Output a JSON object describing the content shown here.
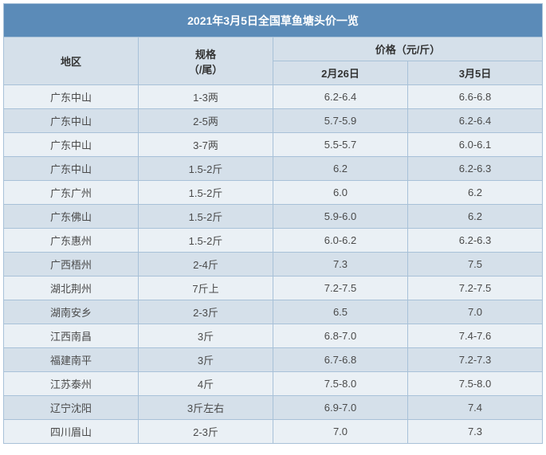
{
  "title": "2021年3月5日全国草鱼塘头价一览",
  "header": {
    "region": "地区",
    "spec": "规格",
    "spec_unit": "（/尾）",
    "price_header": "价格（元/斤）",
    "date1": "2月26日",
    "date2": "3月5日"
  },
  "rows": [
    {
      "region": "广东中山",
      "spec": "1-3两",
      "price1": "6.2-6.4",
      "price2": "6.6-6.8"
    },
    {
      "region": "广东中山",
      "spec": "2-5两",
      "price1": "5.7-5.9",
      "price2": "6.2-6.4"
    },
    {
      "region": "广东中山",
      "spec": "3-7两",
      "price1": "5.5-5.7",
      "price2": "6.0-6.1"
    },
    {
      "region": "广东中山",
      "spec": "1.5-2斤",
      "price1": "6.2",
      "price2": "6.2-6.3"
    },
    {
      "region": "广东广州",
      "spec": "1.5-2斤",
      "price1": "6.0",
      "price2": "6.2"
    },
    {
      "region": "广东佛山",
      "spec": "1.5-2斤",
      "price1": "5.9-6.0",
      "price2": "6.2"
    },
    {
      "region": "广东惠州",
      "spec": "1.5-2斤",
      "price1": "6.0-6.2",
      "price2": "6.2-6.3"
    },
    {
      "region": "广西梧州",
      "spec": "2-4斤",
      "price1": "7.3",
      "price2": "7.5"
    },
    {
      "region": "湖北荆州",
      "spec": "7斤上",
      "price1": "7.2-7.5",
      "price2": "7.2-7.5"
    },
    {
      "region": "湖南安乡",
      "spec": "2-3斤",
      "price1": "6.5",
      "price2": "7.0"
    },
    {
      "region": "江西南昌",
      "spec": "3斤",
      "price1": "6.8-7.0",
      "price2": "7.4-7.6"
    },
    {
      "region": "福建南平",
      "spec": "3斤",
      "price1": "6.7-6.8",
      "price2": "7.2-7.3"
    },
    {
      "region": "江苏泰州",
      "spec": "4斤",
      "price1": "7.5-8.0",
      "price2": "7.5-8.0"
    },
    {
      "region": "辽宁沈阳",
      "spec": "3斤左右",
      "price1": "6.9-7.0",
      "price2": "7.4"
    },
    {
      "region": "四川眉山",
      "spec": "2-3斤",
      "price1": "7.0",
      "price2": "7.3"
    }
  ],
  "colors": {
    "title_bg": "#5b8bb8",
    "title_text": "#ffffff",
    "header_bg": "#d5e0ea",
    "row_odd_bg": "#eaf0f5",
    "row_even_bg": "#d5e0ea",
    "border": "#a8c1d8",
    "text": "#4a4a4a"
  }
}
